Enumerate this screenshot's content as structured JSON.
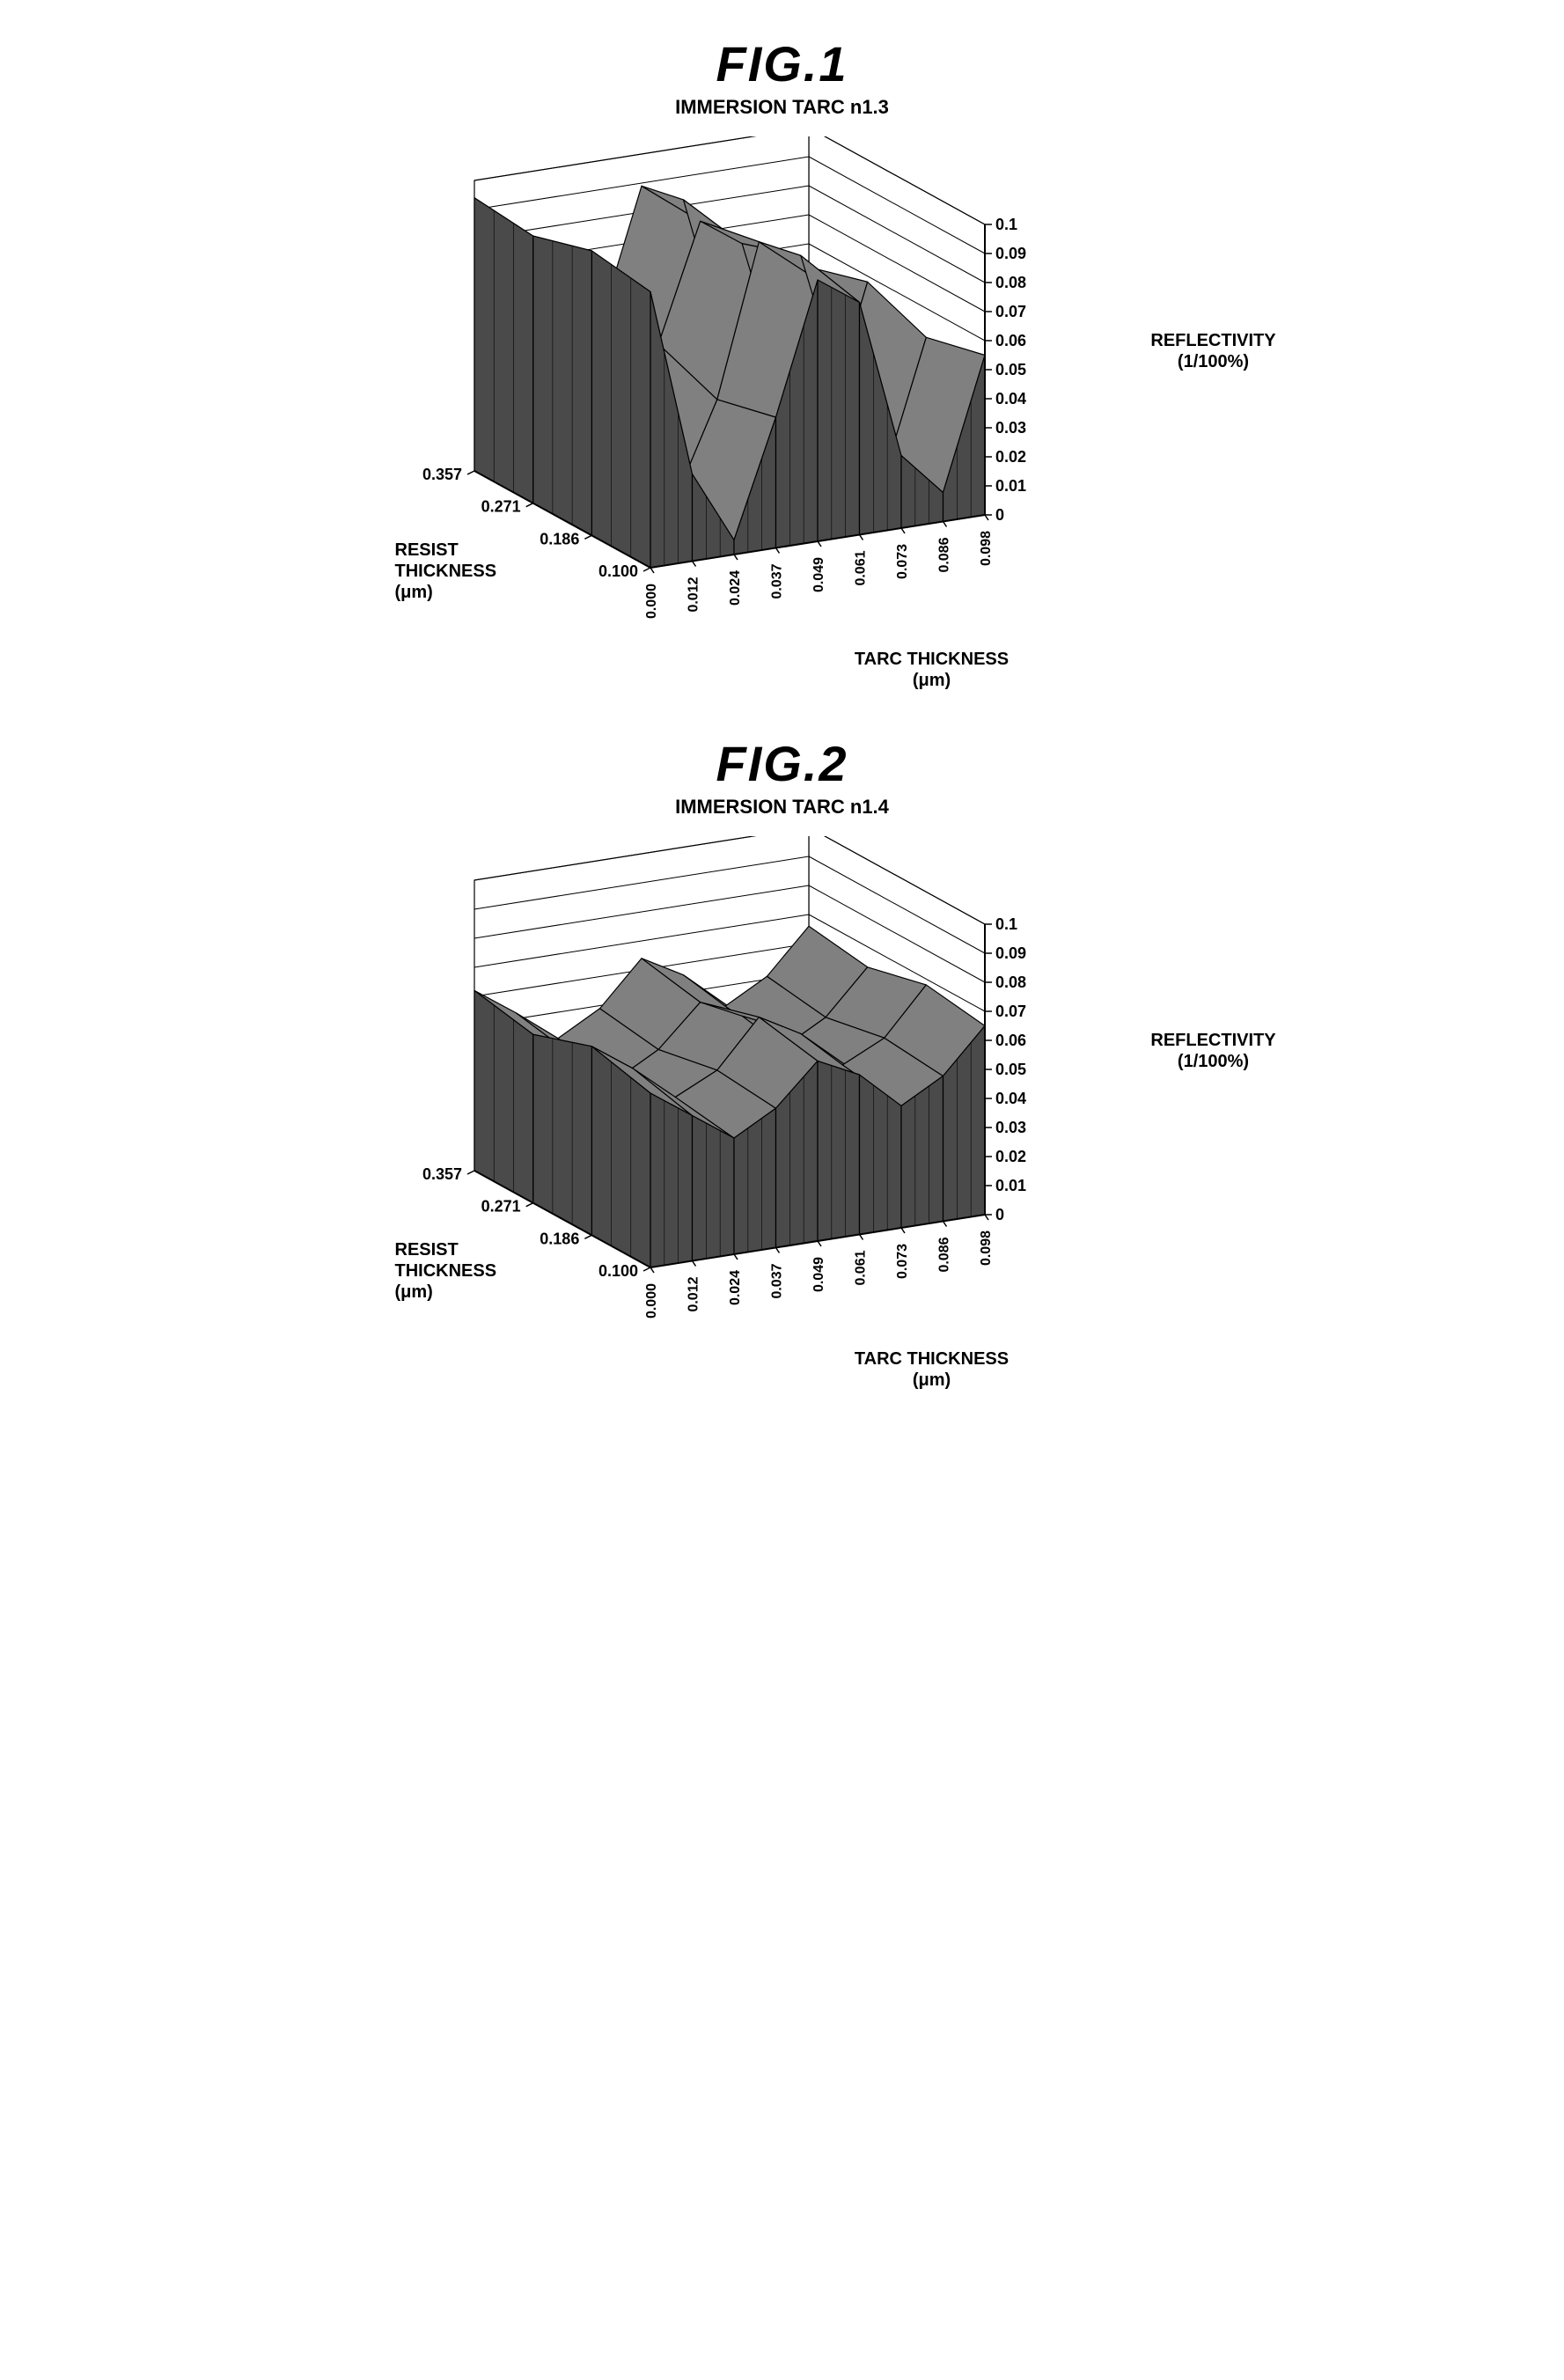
{
  "figures": [
    {
      "id": "fig1",
      "title": "FIG.1",
      "subtitle": "IMMERSION TARC n1.3",
      "type": "3d-surface",
      "x_axis": {
        "label": "TARC THICKNESS\n(μm)",
        "ticks": [
          "0.000",
          "0.012",
          "0.024",
          "0.037",
          "0.049",
          "0.061",
          "0.073",
          "0.086",
          "0.098"
        ]
      },
      "y_axis": {
        "label": "RESIST\nTHICKNESS\n(μm)",
        "ticks": [
          "0.100",
          "0.186",
          "0.271",
          "0.357"
        ]
      },
      "z_axis": {
        "label": "REFLECTIVITY\n(1/100%)",
        "ticks": [
          "0",
          "0.01",
          "0.02",
          "0.03",
          "0.04",
          "0.05",
          "0.06",
          "0.07",
          "0.08",
          "0.09",
          "0.1"
        ],
        "range": [
          0,
          0.1
        ]
      },
      "data_rows": [
        [
          0.095,
          0.03,
          0.005,
          0.045,
          0.09,
          0.08,
          0.025,
          0.01,
          0.055
        ],
        [
          0.098,
          0.04,
          0.008,
          0.04,
          0.092,
          0.085,
          0.035,
          0.005,
          0.05
        ],
        [
          0.092,
          0.035,
          0.003,
          0.048,
          0.088,
          0.078,
          0.028,
          0.012,
          0.058
        ],
        [
          0.094,
          0.032,
          0.006,
          0.044,
          0.089,
          0.082,
          0.03,
          0.008,
          0.052
        ]
      ],
      "styling": {
        "surface_fill": "#808080",
        "surface_stroke": "#000000",
        "front_fill": "#4a4a4a",
        "floor_fill": "#cccccc",
        "wall_stroke": "#000000",
        "stroke_width": 1.2,
        "font_family": "Arial",
        "title_fontsize": 56,
        "subtitle_fontsize": 22,
        "label_fontsize": 20,
        "tick_fontsize": 18
      }
    },
    {
      "id": "fig2",
      "title": "FIG.2",
      "subtitle": "IMMERSION TARC n1.4",
      "type": "3d-surface",
      "x_axis": {
        "label": "TARC THICKNESS\n(μm)",
        "ticks": [
          "0.000",
          "0.012",
          "0.024",
          "0.037",
          "0.049",
          "0.061",
          "0.073",
          "0.086",
          "0.098"
        ]
      },
      "y_axis": {
        "label": "RESIST\nTHICKNESS\n(μm)",
        "ticks": [
          "0.100",
          "0.186",
          "0.271",
          "0.357"
        ]
      },
      "z_axis": {
        "label": "REFLECTIVITY\n(1/100%)",
        "ticks": [
          "0",
          "0.01",
          "0.02",
          "0.03",
          "0.04",
          "0.05",
          "0.06",
          "0.07",
          "0.08",
          "0.09",
          "0.1"
        ],
        "range": [
          0,
          0.1
        ]
      },
      "data_rows": [
        [
          0.06,
          0.05,
          0.04,
          0.048,
          0.062,
          0.055,
          0.042,
          0.05,
          0.065
        ],
        [
          0.065,
          0.055,
          0.043,
          0.05,
          0.066,
          0.058,
          0.045,
          0.052,
          0.068
        ],
        [
          0.058,
          0.048,
          0.038,
          0.046,
          0.06,
          0.053,
          0.04,
          0.048,
          0.063
        ],
        [
          0.062,
          0.052,
          0.041,
          0.049,
          0.064,
          0.056,
          0.043,
          0.051,
          0.066
        ]
      ],
      "styling": {
        "surface_fill": "#808080",
        "surface_stroke": "#000000",
        "front_fill": "#4a4a4a",
        "floor_fill": "#cccccc",
        "wall_stroke": "#000000",
        "stroke_width": 1.2,
        "font_family": "Arial",
        "title_fontsize": 56,
        "subtitle_fontsize": 22,
        "label_fontsize": 20,
        "tick_fontsize": 18
      }
    }
  ]
}
